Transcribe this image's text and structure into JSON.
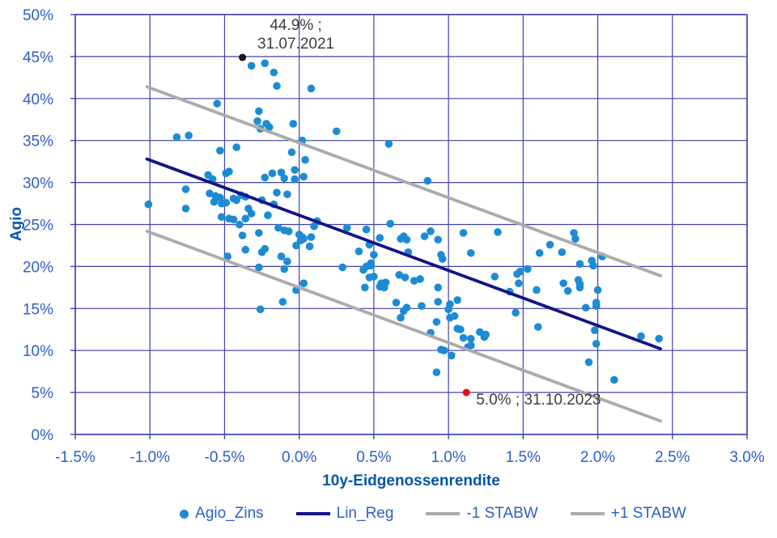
{
  "chart_data": {
    "type": "scatter",
    "xlabel": "10y-Eidgenossenrendite",
    "ylabel": "Agio",
    "xlim": [
      -1.5,
      3.0
    ],
    "ylim": [
      0,
      50
    ],
    "grid": true,
    "legend_position": "bottom",
    "x_tick_values": [
      -1.5,
      -1.0,
      -0.5,
      0.0,
      0.5,
      1.0,
      1.5,
      2.0,
      2.5,
      3.0
    ],
    "x_ticks": [
      "-1.5%",
      "-1.0%",
      "-0.5%",
      "0.0%",
      "0.5%",
      "1.0%",
      "1.5%",
      "2.0%",
      "2.5%",
      "3.0%"
    ],
    "y_tick_values": [
      0,
      5,
      10,
      15,
      20,
      25,
      30,
      35,
      40,
      45,
      50
    ],
    "y_ticks": [
      "0%",
      "5%",
      "10%",
      "15%",
      "20%",
      "25%",
      "30%",
      "35%",
      "40%",
      "45%",
      "50%"
    ],
    "colors": {
      "scatter": "#1b8bd4",
      "regression": "#131387",
      "stabw": "#ababab",
      "grid": "#4141ad",
      "tick_text": "#2a5fca",
      "title_text": "#0055aa",
      "annotation_text": "#3c3c3c",
      "high_point": "#141414",
      "low_point": "#ea0c0c"
    },
    "series": [
      {
        "name": "Agio_Zins",
        "kind": "scatter",
        "color": "#1b8bd4",
        "points": [
          [
            -0.32,
            43.9
          ],
          [
            -0.23,
            44.2
          ],
          [
            -0.17,
            43.1
          ],
          [
            -0.15,
            41.5
          ],
          [
            0.08,
            41.2
          ],
          [
            -0.55,
            39.4
          ],
          [
            -0.27,
            38.5
          ],
          [
            -0.82,
            35.4
          ],
          [
            -0.74,
            35.6
          ],
          [
            -0.28,
            37.3
          ],
          [
            -0.22,
            37.0
          ],
          [
            -0.2,
            36.6
          ],
          [
            -0.26,
            36.4
          ],
          [
            -0.04,
            37.0
          ],
          [
            0.25,
            36.1
          ],
          [
            0.6,
            34.6
          ],
          [
            0.02,
            35.0
          ],
          [
            -0.42,
            34.2
          ],
          [
            -0.53,
            33.8
          ],
          [
            -0.05,
            33.6
          ],
          [
            0.04,
            32.7
          ],
          [
            -0.03,
            31.5
          ],
          [
            -0.18,
            31.1
          ],
          [
            -0.12,
            31.2
          ],
          [
            -0.1,
            30.5
          ],
          [
            -0.03,
            30.4
          ],
          [
            -0.23,
            30.6
          ],
          [
            0.03,
            30.7
          ],
          [
            -0.61,
            30.9
          ],
          [
            -0.58,
            30.4
          ],
          [
            -0.49,
            31.1
          ],
          [
            -0.47,
            31.3
          ],
          [
            0.86,
            30.2
          ],
          [
            -1.01,
            27.4
          ],
          [
            -0.76,
            29.2
          ],
          [
            -0.76,
            26.9
          ],
          [
            -0.6,
            28.7
          ],
          [
            -0.56,
            28.4
          ],
          [
            -0.53,
            28.2
          ],
          [
            -0.57,
            27.7
          ],
          [
            -0.52,
            27.5
          ],
          [
            -0.49,
            27.6
          ],
          [
            -0.44,
            28.1
          ],
          [
            -0.42,
            27.9
          ],
          [
            -0.39,
            28.5
          ],
          [
            -0.36,
            28.3
          ],
          [
            -0.15,
            28.8
          ],
          [
            -0.08,
            28.6
          ],
          [
            -0.25,
            27.9
          ],
          [
            -0.17,
            27.4
          ],
          [
            -0.34,
            26.9
          ],
          [
            -0.32,
            26.3
          ],
          [
            -0.21,
            26.1
          ],
          [
            -0.36,
            25.7
          ],
          [
            -0.52,
            25.9
          ],
          [
            -0.47,
            25.7
          ],
          [
            -0.44,
            25.6
          ],
          [
            -0.4,
            25.0
          ],
          [
            0.12,
            25.4
          ],
          [
            0.61,
            25.1
          ],
          [
            0.1,
            24.8
          ],
          [
            0.32,
            24.6
          ],
          [
            0.45,
            24.4
          ],
          [
            -0.14,
            24.6
          ],
          [
            -0.1,
            24.3
          ],
          [
            -0.07,
            24.2
          ],
          [
            -0.27,
            24.0
          ],
          [
            0.88,
            24.2
          ],
          [
            1.1,
            24.0
          ],
          [
            1.33,
            24.1
          ],
          [
            1.84,
            24.0
          ],
          [
            -0.38,
            23.7
          ],
          [
            0.0,
            23.8
          ],
          [
            0.02,
            23.5
          ],
          [
            0.01,
            23.1
          ],
          [
            0.03,
            23.3
          ],
          [
            0.08,
            23.5
          ],
          [
            0.54,
            23.4
          ],
          [
            0.68,
            23.3
          ],
          [
            0.7,
            23.6
          ],
          [
            0.72,
            23.2
          ],
          [
            0.84,
            23.6
          ],
          [
            0.93,
            23.2
          ],
          [
            1.85,
            23.3
          ],
          [
            0.07,
            22.4
          ],
          [
            -0.02,
            22.5
          ],
          [
            -0.36,
            22.0
          ],
          [
            -0.23,
            22.1
          ],
          [
            0.47,
            22.6
          ],
          [
            1.68,
            22.6
          ],
          [
            -0.48,
            21.2
          ],
          [
            -0.25,
            21.7
          ],
          [
            0.4,
            21.8
          ],
          [
            0.5,
            21.4
          ],
          [
            0.73,
            21.7
          ],
          [
            0.95,
            21.4
          ],
          [
            0.96,
            20.9
          ],
          [
            1.15,
            21.6
          ],
          [
            1.61,
            21.6
          ],
          [
            1.76,
            21.7
          ],
          [
            2.03,
            21.2
          ],
          [
            -0.12,
            21.2
          ],
          [
            -0.08,
            20.6
          ],
          [
            0.29,
            19.9
          ],
          [
            0.43,
            19.6
          ],
          [
            0.45,
            20.0
          ],
          [
            0.48,
            20.4
          ],
          [
            0.48,
            20.1
          ],
          [
            -0.27,
            19.9
          ],
          [
            -0.1,
            19.7
          ],
          [
            1.88,
            20.3
          ],
          [
            1.96,
            20.7
          ],
          [
            1.97,
            20.1
          ],
          [
            0.47,
            18.7
          ],
          [
            0.5,
            18.8
          ],
          [
            0.67,
            19.0
          ],
          [
            0.71,
            18.7
          ],
          [
            0.77,
            18.3
          ],
          [
            0.81,
            18.5
          ],
          [
            0.55,
            18.0
          ],
          [
            0.58,
            18.1
          ],
          [
            0.03,
            18.0
          ],
          [
            1.31,
            18.8
          ],
          [
            1.46,
            19.1
          ],
          [
            1.48,
            19.4
          ],
          [
            1.53,
            19.7
          ],
          [
            1.47,
            18.0
          ],
          [
            1.77,
            18.0
          ],
          [
            1.87,
            18.4
          ],
          [
            1.88,
            17.9
          ],
          [
            1.88,
            17.5
          ],
          [
            -0.02,
            17.2
          ],
          [
            0.44,
            17.5
          ],
          [
            0.54,
            17.6
          ],
          [
            0.57,
            17.5
          ],
          [
            0.93,
            17.5
          ],
          [
            1.41,
            17.0
          ],
          [
            1.59,
            17.2
          ],
          [
            1.8,
            17.1
          ],
          [
            2.0,
            17.2
          ],
          [
            -0.11,
            15.8
          ],
          [
            -0.26,
            14.9
          ],
          [
            0.65,
            15.7
          ],
          [
            0.72,
            15.1
          ],
          [
            0.7,
            14.7
          ],
          [
            0.82,
            15.3
          ],
          [
            0.93,
            15.8
          ],
          [
            1.01,
            15.5
          ],
          [
            1.06,
            16.0
          ],
          [
            1.0,
            14.9
          ],
          [
            1.45,
            14.5
          ],
          [
            1.92,
            15.1
          ],
          [
            1.99,
            15.3
          ],
          [
            1.99,
            15.7
          ],
          [
            0.68,
            13.9
          ],
          [
            1.04,
            14.1
          ],
          [
            1.01,
            13.9
          ],
          [
            0.92,
            13.4
          ],
          [
            0.88,
            12.1
          ],
          [
            1.06,
            12.6
          ],
          [
            1.08,
            12.5
          ],
          [
            1.1,
            11.5
          ],
          [
            1.15,
            11.4
          ],
          [
            1.21,
            12.2
          ],
          [
            1.25,
            11.9
          ],
          [
            1.24,
            11.6
          ],
          [
            1.6,
            12.8
          ],
          [
            1.98,
            12.4
          ],
          [
            2.29,
            11.7
          ],
          [
            2.41,
            11.4
          ],
          [
            1.99,
            10.8
          ],
          [
            0.95,
            10.1
          ],
          [
            0.97,
            10.0
          ],
          [
            1.02,
            9.4
          ],
          [
            1.13,
            10.4
          ],
          [
            1.15,
            10.6
          ],
          [
            0.92,
            7.4
          ],
          [
            1.94,
            8.6
          ],
          [
            2.11,
            6.5
          ]
        ]
      },
      {
        "name": "Lin_Reg",
        "kind": "line",
        "color": "#131387",
        "points": [
          [
            -1.02,
            32.8
          ],
          [
            2.42,
            10.2
          ]
        ]
      },
      {
        "name": "-1 STABW",
        "kind": "line",
        "color": "#ababab",
        "points": [
          [
            -1.02,
            24.2
          ],
          [
            2.42,
            1.6
          ]
        ]
      },
      {
        "name": "+1 STABW",
        "kind": "line",
        "color": "#ababab",
        "points": [
          [
            -1.02,
            41.4
          ],
          [
            2.42,
            18.9
          ]
        ]
      }
    ],
    "annotations": [
      {
        "name": "annotation-2021-high",
        "label_lines": [
          "44.9% ;",
          "31.07.2021"
        ],
        "x": -0.38,
        "y": 44.9,
        "dot_color": "#141414",
        "anchor": "middle",
        "offset": [
          66,
          -34
        ],
        "line_height": 23
      },
      {
        "name": "annotation-2023-low",
        "label_lines": [
          "5.0% ; 31.10.2023"
        ],
        "x": 1.12,
        "y": 5.0,
        "dot_color": "#ea0c0c",
        "anchor": "start",
        "offset": [
          12,
          15
        ],
        "line_height": 23
      }
    ]
  },
  "legend": {
    "items": [
      {
        "label": "Agio_Zins",
        "marker": "dot",
        "color": "#1b8bd4"
      },
      {
        "label": "Lin_Reg",
        "marker": "line",
        "color": "#131387"
      },
      {
        "label": "-1 STABW",
        "marker": "line",
        "color": "#ababab"
      },
      {
        "label": "+1 STABW",
        "marker": "line",
        "color": "#ababab"
      }
    ]
  }
}
